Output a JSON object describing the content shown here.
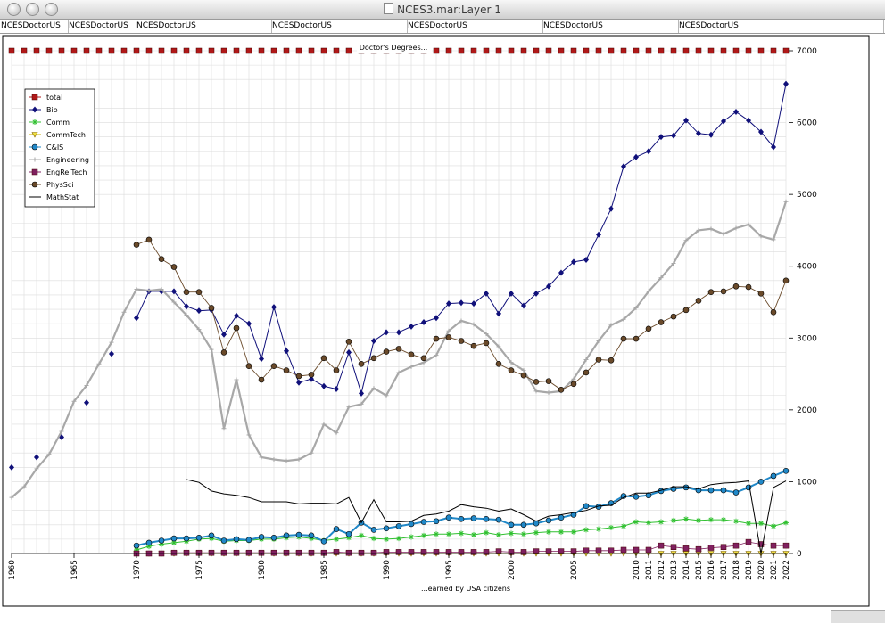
{
  "window": {
    "title": "NCES3.mar:Layer 1"
  },
  "tabs": [
    {
      "label": "NCESDoctorUS"
    },
    {
      "label": "NCESDoctorUS"
    },
    {
      "label": "NCESDoctorUS"
    },
    {
      "label": "NCESDoctorUS"
    },
    {
      "label": "NCESDoctorUS"
    },
    {
      "label": "NCESDoctorUS"
    },
    {
      "label": "NCESDoctorUS"
    }
  ],
  "chart_data": {
    "type": "line",
    "title": "Doctor's Degrees...",
    "xlabel": "...earned by USA citizens",
    "ylabel": "",
    "xlim": [
      1960,
      2022
    ],
    "ylim": [
      0,
      7000
    ],
    "grid": true,
    "legend_position": "top-left",
    "x_ticks": [
      1960,
      1965,
      1970,
      1975,
      1980,
      1985,
      1990,
      1995,
      2000,
      2005,
      2010,
      2011,
      2012,
      2013,
      2014,
      2015,
      2016,
      2017,
      2018,
      2019,
      2020,
      2021,
      2022
    ],
    "y_ticks": [
      0,
      1000,
      2000,
      3000,
      4000,
      5000,
      6000,
      7000
    ],
    "series": [
      {
        "name": "total",
        "color": "#b01818",
        "marker": "square",
        "x_start": 1960,
        "values": [
          7000,
          7000,
          7000,
          7000,
          7000,
          7000,
          7000,
          7000,
          7000,
          7000,
          7000,
          7000,
          7000,
          7000,
          7000,
          7000,
          7000,
          7000,
          7000,
          7000,
          7000,
          7000,
          7000,
          7000,
          7000,
          7000,
          7000,
          7000,
          7000,
          7000,
          7000,
          7000,
          7000,
          7000,
          7000,
          7000,
          7000,
          7000,
          7000,
          7000,
          7000,
          7000,
          7000,
          7000,
          7000,
          7000,
          7000,
          7000,
          7000,
          7000,
          7000,
          7000,
          7000,
          7000,
          7000,
          7000,
          7000,
          7000,
          7000,
          7000,
          7000,
          7000,
          7000
        ]
      },
      {
        "name": "Bio",
        "color": "#10107a",
        "marker": "diamond",
        "x_start": 1960,
        "values": [
          1200,
          null,
          1340,
          null,
          1620,
          null,
          2100,
          null,
          2780,
          null,
          3280,
          3650,
          3650,
          3650,
          3440,
          3380,
          3390,
          3050,
          3310,
          3200,
          2710,
          3430,
          2820,
          2380,
          2430,
          2330,
          2290,
          2800,
          2230,
          2960,
          3080,
          3080,
          3160,
          3220,
          3280,
          3480,
          3490,
          3480,
          3620,
          3340,
          3620,
          3450,
          3620,
          3720,
          3910,
          4060,
          4090,
          4440,
          4800,
          5390,
          5520,
          5600,
          5800,
          5820,
          6030,
          5850,
          5830,
          6020,
          6150,
          6030,
          5870,
          5660,
          6540
        ]
      },
      {
        "name": "Comm",
        "color": "#30c030",
        "marker": "star",
        "x_start": 1970,
        "values": [
          50,
          100,
          130,
          150,
          170,
          200,
          210,
          170,
          180,
          180,
          200,
          200,
          220,
          230,
          210,
          180,
          200,
          220,
          250,
          210,
          200,
          210,
          230,
          250,
          270,
          270,
          280,
          260,
          290,
          260,
          280,
          270,
          290,
          300,
          300,
          300,
          330,
          340,
          360,
          380,
          440,
          430,
          440,
          460,
          480,
          460,
          470,
          470,
          450,
          420,
          420,
          380,
          430
        ]
      },
      {
        "name": "CommTech",
        "color": "#c8b000",
        "marker": "triangle",
        "x_start": 1970,
        "values": [
          0,
          0,
          0,
          0,
          0,
          0,
          0,
          0,
          0,
          0,
          0,
          0,
          0,
          0,
          0,
          0,
          0,
          0,
          0,
          0,
          0,
          0,
          0,
          0,
          0,
          0,
          0,
          0,
          0,
          0,
          0,
          0,
          0,
          0,
          0,
          0,
          0,
          0,
          0,
          0,
          0,
          0,
          0,
          0,
          0,
          0,
          0,
          0,
          0,
          0,
          0,
          0,
          0
        ]
      },
      {
        "name": "C&IS",
        "color": "#2088c8",
        "marker": "circle",
        "x_start": 1970,
        "values": [
          110,
          150,
          180,
          210,
          210,
          220,
          250,
          180,
          200,
          190,
          230,
          220,
          250,
          260,
          250,
          170,
          340,
          270,
          430,
          330,
          350,
          380,
          410,
          440,
          450,
          500,
          480,
          490,
          480,
          470,
          400,
          400,
          420,
          460,
          500,
          540,
          660,
          650,
          700,
          800,
          790,
          810,
          870,
          900,
          920,
          880,
          880,
          880,
          850,
          920,
          1000,
          1080,
          1150
        ]
      },
      {
        "name": "Engineering",
        "color": "#a8a8a8",
        "marker": "cross",
        "x_start": 1960,
        "values": [
          780,
          930,
          1180,
          1380,
          1700,
          2120,
          2340,
          2640,
          2940,
          3360,
          3680,
          3660,
          3680,
          3500,
          3320,
          3120,
          2840,
          1740,
          2420,
          1650,
          1340,
          1310,
          1290,
          1310,
          1400,
          1800,
          1680,
          2040,
          2080,
          2300,
          2200,
          2520,
          2600,
          2660,
          2760,
          3100,
          3240,
          3190,
          3060,
          2880,
          2660,
          2550,
          2260,
          2240,
          2260,
          2430,
          2700,
          2960,
          3180,
          3260,
          3420,
          3650,
          3840,
          4040,
          4360,
          4500,
          4520,
          4450,
          4530,
          4580,
          4420,
          4370,
          4900
        ]
      },
      {
        "name": "EngRelTech",
        "color": "#802060",
        "marker": "square",
        "x_start": 1970,
        "values": [
          0,
          0,
          0,
          10,
          10,
          10,
          10,
          10,
          10,
          10,
          10,
          10,
          10,
          10,
          10,
          10,
          20,
          10,
          10,
          10,
          20,
          20,
          20,
          20,
          20,
          20,
          20,
          20,
          20,
          30,
          20,
          20,
          30,
          30,
          30,
          30,
          40,
          40,
          40,
          50,
          50,
          50,
          110,
          90,
          70,
          60,
          80,
          90,
          110,
          160,
          130,
          110,
          110
        ]
      },
      {
        "name": "PhysSci",
        "color": "#6a4a2a",
        "marker": "circle",
        "x_start": 1970,
        "values": [
          4300,
          4370,
          4100,
          3990,
          3640,
          3640,
          3420,
          2800,
          3140,
          2610,
          2420,
          2610,
          2550,
          2470,
          2490,
          2720,
          2550,
          2950,
          2640,
          2720,
          2810,
          2850,
          2770,
          2720,
          2990,
          3010,
          2960,
          2890,
          2930,
          2640,
          2550,
          2480,
          2390,
          2400,
          2280,
          2360,
          2520,
          2700,
          2690,
          2990,
          2990,
          3130,
          3220,
          3300,
          3390,
          3520,
          3640,
          3650,
          3720,
          3710,
          3620,
          3360,
          3800
        ]
      },
      {
        "name": "MathStat",
        "color": "#000000",
        "marker": "none",
        "x_start": 1970,
        "values": [
          null,
          null,
          null,
          null,
          1030,
          990,
          870,
          830,
          810,
          780,
          720,
          720,
          720,
          690,
          700,
          700,
          690,
          780,
          430,
          750,
          440,
          440,
          450,
          530,
          550,
          590,
          680,
          650,
          630,
          590,
          620,
          540,
          450,
          520,
          540,
          570,
          600,
          660,
          670,
          780,
          840,
          840,
          880,
          930,
          930,
          900,
          960,
          980,
          990,
          1010,
          0,
          920,
          1010
        ]
      }
    ]
  }
}
